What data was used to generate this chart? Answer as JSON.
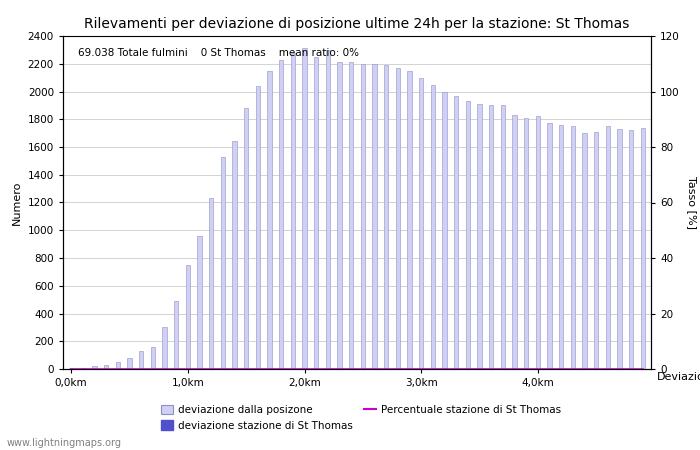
{
  "title": "Rilevamenti per deviazione di posizione ultime 24h per la stazione: St Thomas",
  "xlabel": "Deviazioni",
  "ylabel_left": "Numero",
  "ylabel_right": "Tasso [%]",
  "annotation": "69.038 Totale fulmini    0 St Thomas    mean ratio: 0%",
  "watermark": "www.lightningmaps.org",
  "bar_values": [
    5,
    10,
    20,
    30,
    50,
    80,
    130,
    160,
    300,
    490,
    750,
    960,
    1230,
    1530,
    1640,
    1880,
    2040,
    2150,
    2230,
    2280,
    2310,
    2250,
    2300,
    2210,
    2210,
    2200,
    2200,
    2190,
    2170,
    2150,
    2100,
    2050,
    2000,
    1970,
    1930,
    1910,
    1900,
    1900,
    1830,
    1810,
    1820,
    1770,
    1760,
    1750,
    1700,
    1710,
    1750,
    1730,
    1720,
    1740
  ],
  "st_thomas_values": [
    0,
    0,
    0,
    0,
    0,
    0,
    0,
    0,
    0,
    0,
    0,
    0,
    0,
    0,
    0,
    0,
    0,
    0,
    0,
    0,
    0,
    0,
    0,
    0,
    0,
    0,
    0,
    0,
    0,
    0,
    0,
    0,
    0,
    0,
    0,
    0,
    0,
    0,
    0,
    0,
    0,
    0,
    0,
    0,
    0,
    0,
    0,
    0,
    0,
    0
  ],
  "percentuale_values": [
    0,
    0,
    0,
    0,
    0,
    0,
    0,
    0,
    0,
    0,
    0,
    0,
    0,
    0,
    0,
    0,
    0,
    0,
    0,
    0,
    0,
    0,
    0,
    0,
    0,
    0,
    0,
    0,
    0,
    0,
    0,
    0,
    0,
    0,
    0,
    0,
    0,
    0,
    0,
    0,
    0,
    0,
    0,
    0,
    0,
    0,
    0,
    0,
    0,
    0
  ],
  "bar_color": "#d0d0f4",
  "bar_edge_color": "#9090c8",
  "st_thomas_color": "#5050cc",
  "percentuale_color": "#cc00cc",
  "grid_color": "#cccccc",
  "background_color": "#ffffff",
  "x_tick_positions": [
    0,
    10,
    20,
    30,
    40
  ],
  "x_tick_labels": [
    "0,0km",
    "1,0km",
    "2,0km",
    "3,0km",
    "4,0km"
  ],
  "ylim_left": [
    0,
    2400
  ],
  "ylim_right": [
    0,
    120
  ],
  "yticks_left": [
    0,
    200,
    400,
    600,
    800,
    1000,
    1200,
    1400,
    1600,
    1800,
    2000,
    2200,
    2400
  ],
  "yticks_right": [
    0,
    20,
    40,
    60,
    80,
    100,
    120
  ],
  "title_fontsize": 10,
  "axis_fontsize": 8,
  "tick_fontsize": 7.5,
  "annotation_fontsize": 7.5,
  "legend_fontsize": 7.5,
  "watermark_fontsize": 7,
  "bar_width": 0.35,
  "legend_label_1": "deviazione dalla posizone",
  "legend_label_2": "deviazione stazione di St Thomas",
  "legend_label_3": "Percentuale stazione di St Thomas"
}
